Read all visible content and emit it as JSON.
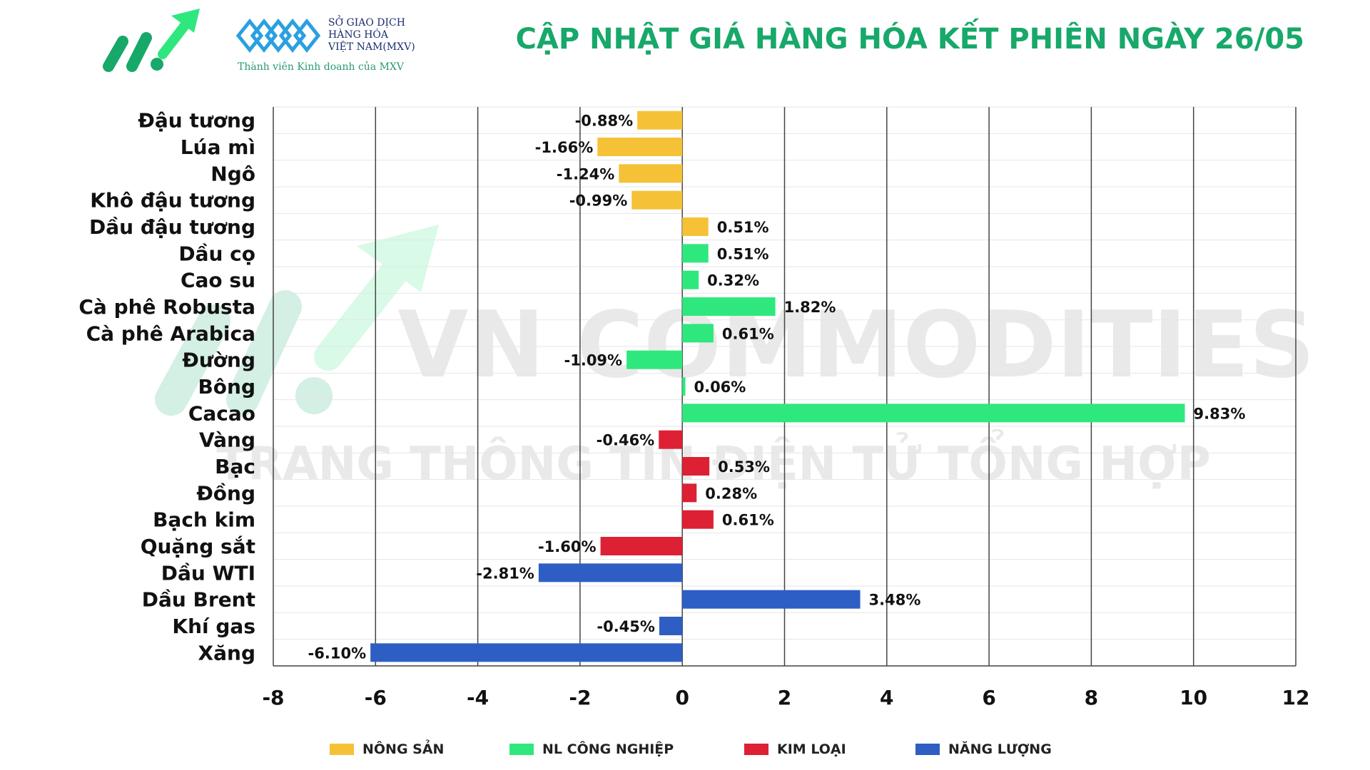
{
  "header": {
    "title": "CẬP NHẬT GIÁ HÀNG HÓA KẾT PHIÊN NGÀY 26/05",
    "exchange_name_line1": "SỞ GIAO DỊCH",
    "exchange_name_line2": "HÀNG HÓA",
    "exchange_name_line3": "VIỆT NAM(MXV)",
    "tagline": "Thành viên Kinh doanh của MXV"
  },
  "watermark": {
    "line1": "VN COMMODITIES",
    "line2": "TRANG THÔNG TIN ĐIỆN TỬ TỔNG HỢP"
  },
  "colors": {
    "title": "#17a86a",
    "grid": "#444444",
    "nong_san": "#f5c237",
    "nl_cong_nghiep": "#2ee87d",
    "kim_loai": "#dd2033",
    "nang_luong": "#2e5ec4"
  },
  "chart_data": {
    "type": "bar",
    "orientation": "horizontal",
    "categories": [
      "Đậu tương",
      "Lúa mì",
      "Ngô",
      "Khô đậu tương",
      "Dầu đậu tương",
      "Dầu cọ",
      "Cao su",
      "Cà phê Robusta",
      "Cà phê Arabica",
      "Đường",
      "Bông",
      "Cacao",
      "Vàng",
      "Bạc",
      "Đồng",
      "Bạch kim",
      "Quặng sắt",
      "Dầu WTI",
      "Dầu Brent",
      "Khí gas",
      "Xăng"
    ],
    "values": [
      -0.88,
      -1.66,
      -1.24,
      -0.99,
      0.51,
      0.51,
      0.32,
      1.82,
      0.61,
      -1.09,
      0.06,
      9.83,
      -0.46,
      0.53,
      0.28,
      0.61,
      -1.6,
      -2.81,
      3.48,
      -0.45,
      -6.1
    ],
    "labels": [
      "-0.88%",
      "-1.66%",
      "-1.24%",
      "-0.99%",
      "0.51%",
      "0.51%",
      "0.32%",
      "1.82%",
      "0.61%",
      "-1.09%",
      "0.06%",
      "9.83%",
      "-0.46%",
      "0.53%",
      "0.28%",
      "0.61%",
      "-1.60%",
      "-2.81%",
      "3.48%",
      "-0.45%",
      "-6.10%"
    ],
    "groups": [
      "nong_san",
      "nong_san",
      "nong_san",
      "nong_san",
      "nong_san",
      "nl_cong_nghiep",
      "nl_cong_nghiep",
      "nl_cong_nghiep",
      "nl_cong_nghiep",
      "nl_cong_nghiep",
      "nl_cong_nghiep",
      "nl_cong_nghiep",
      "kim_loai",
      "kim_loai",
      "kim_loai",
      "kim_loai",
      "kim_loai",
      "nang_luong",
      "nang_luong",
      "nang_luong",
      "nang_luong"
    ],
    "xlim": [
      -8,
      12
    ],
    "xticks": [
      -8,
      -6,
      -4,
      -2,
      0,
      2,
      4,
      6,
      8,
      10,
      12
    ],
    "xtick_labels": [
      "-8",
      "-6",
      "-4",
      "-2",
      "0",
      "2",
      "4",
      "6",
      "8",
      "10",
      "12"
    ],
    "grid": true,
    "legend_position": "bottom",
    "legend": [
      {
        "key": "nong_san",
        "label": "NÔNG SẢN"
      },
      {
        "key": "nl_cong_nghiep",
        "label": "NL CÔNG NGHIỆP"
      },
      {
        "key": "kim_loai",
        "label": "KIM LOẠI"
      },
      {
        "key": "nang_luong",
        "label": "NĂNG LƯỢNG"
      }
    ]
  }
}
